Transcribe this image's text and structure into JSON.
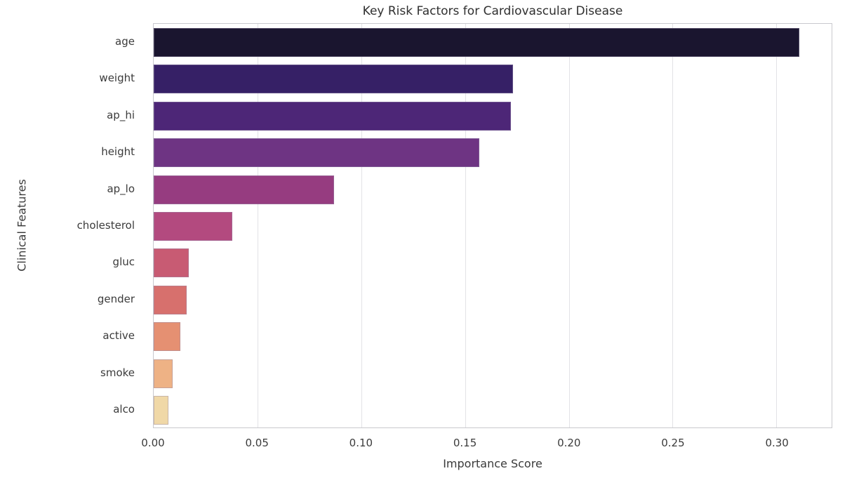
{
  "chart_data": {
    "type": "bar",
    "orientation": "horizontal",
    "title": "Key Risk Factors for Cardiovascular Disease",
    "xlabel": "Importance Score",
    "ylabel": "Clinical Features",
    "categories": [
      "age",
      "weight",
      "ap_hi",
      "height",
      "ap_lo",
      "cholesterol",
      "gluc",
      "gender",
      "active",
      "smoke",
      "alco"
    ],
    "values": [
      0.311,
      0.173,
      0.172,
      0.157,
      0.087,
      0.038,
      0.017,
      0.016,
      0.013,
      0.009,
      0.007
    ],
    "bar_colors": [
      "#1a152f",
      "#362066",
      "#4d2677",
      "#6e3483",
      "#963c80",
      "#b34a7f",
      "#c85b73",
      "#d7706d",
      "#e59072",
      "#eeb285",
      "#f0d8a7"
    ],
    "palette": "magma",
    "xlim": [
      0,
      0.3266
    ],
    "xticks": [
      0,
      0.05,
      0.1,
      0.15,
      0.2,
      0.25,
      0.3
    ],
    "xtick_labels": [
      "0.00",
      "0.05",
      "0.10",
      "0.15",
      "0.20",
      "0.25",
      "0.30"
    ],
    "grid": "vertical",
    "legend": "none"
  },
  "colors": {
    "background": "#ffffff",
    "gridline": "#e2e2e6",
    "spine": "#c9c9ce",
    "text": "#3a3a3a",
    "bar_edge": "#a89cc0"
  }
}
